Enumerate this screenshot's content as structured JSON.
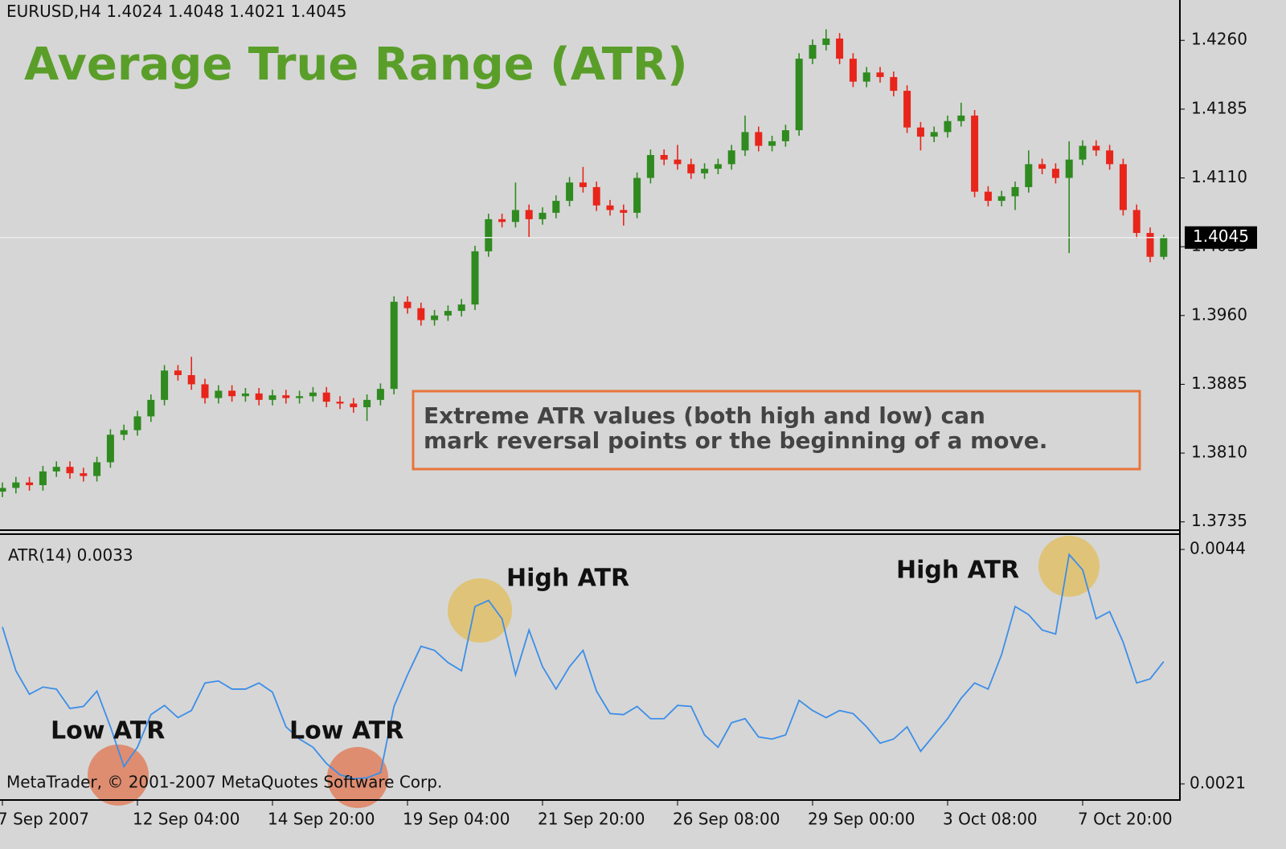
{
  "header": {
    "symbol": "EURUSD,H4"
  },
  "footer": "MetaTrader, © 2001-2007 MetaQuotes Software Corp.",
  "chart_data": [
    {
      "type": "candlestick",
      "title": "Average True Range (ATR)",
      "annotation": [
        "Extreme ATR values (both high and low) can",
        "mark reversal points or the beginning of a move."
      ],
      "up_color": "#2f8a1f",
      "down_color": "#e8251b",
      "categories": [
        "7 Sep 2007",
        null,
        null,
        null,
        null,
        null,
        null,
        null,
        null,
        null,
        "12 Sep 04:00",
        null,
        null,
        null,
        null,
        null,
        null,
        null,
        null,
        null,
        "14 Sep 20:00",
        null,
        null,
        null,
        null,
        null,
        null,
        null,
        null,
        null,
        "19 Sep 04:00",
        null,
        null,
        null,
        null,
        null,
        null,
        null,
        null,
        null,
        "21 Sep 20:00",
        null,
        null,
        null,
        null,
        null,
        null,
        null,
        null,
        null,
        "26 Sep 08:00",
        null,
        null,
        null,
        null,
        null,
        null,
        null,
        null,
        null,
        "29 Sep 00:00",
        null,
        null,
        null,
        null,
        null,
        null,
        null,
        null,
        null,
        "3 Oct 08:00",
        null,
        null,
        null,
        null,
        null,
        null,
        null,
        null,
        null,
        "7 Oct 20:00",
        null,
        null,
        null,
        null,
        null,
        null
      ],
      "open": [
        1.3768,
        1.3772,
        1.3778,
        1.3775,
        1.379,
        1.3795,
        1.3788,
        1.3785,
        1.38,
        1.383,
        1.3835,
        1.385,
        1.3868,
        1.39,
        1.3895,
        1.3885,
        1.387,
        1.3878,
        1.3872,
        1.3875,
        1.3868,
        1.3873,
        1.387,
        1.3872,
        1.3876,
        1.3866,
        1.3864,
        1.386,
        1.3868,
        1.388,
        1.3975,
        1.3968,
        1.3955,
        1.396,
        1.3965,
        1.3972,
        1.403,
        1.4065,
        1.4062,
        1.4075,
        1.4065,
        1.4072,
        1.4085,
        1.4105,
        1.41,
        1.408,
        1.4075,
        1.4072,
        1.411,
        1.4135,
        1.413,
        1.4125,
        1.4115,
        1.412,
        1.4125,
        1.414,
        1.416,
        1.4145,
        1.415,
        1.4162,
        1.424,
        1.4255,
        1.4262,
        1.424,
        1.4215,
        1.4225,
        1.422,
        1.4205,
        1.4165,
        1.4155,
        1.416,
        1.4172,
        1.4178,
        1.4095,
        1.4085,
        1.409,
        1.41,
        1.4125,
        1.412,
        1.411,
        1.413,
        1.4145,
        1.414,
        1.4125,
        1.4075,
        1.405,
        1.4024
      ],
      "high": [
        1.3778,
        1.3784,
        1.3784,
        1.3796,
        1.3801,
        1.3801,
        1.3794,
        1.3806,
        1.3836,
        1.3841,
        1.3856,
        1.3874,
        1.3906,
        1.3906,
        1.3915,
        1.3891,
        1.3884,
        1.3884,
        1.3881,
        1.3881,
        1.3879,
        1.3879,
        1.3878,
        1.3882,
        1.3882,
        1.3872,
        1.387,
        1.3874,
        1.3886,
        1.3981,
        1.3981,
        1.3974,
        1.3966,
        1.3971,
        1.3978,
        1.4036,
        1.4071,
        1.4071,
        1.4105,
        1.4081,
        1.4078,
        1.4091,
        1.4111,
        1.4122,
        1.4106,
        1.4086,
        1.4081,
        1.4116,
        1.4141,
        1.4141,
        1.4146,
        1.4131,
        1.4126,
        1.4131,
        1.4146,
        1.4178,
        1.4166,
        1.4156,
        1.4168,
        1.4246,
        1.4261,
        1.4272,
        1.4268,
        1.4246,
        1.4231,
        1.4231,
        1.4226,
        1.4211,
        1.4171,
        1.4166,
        1.4178,
        1.4192,
        1.4184,
        1.4101,
        1.4096,
        1.4106,
        1.414,
        1.4131,
        1.4126,
        1.415,
        1.4151,
        1.4151,
        1.4146,
        1.4131,
        1.4081,
        1.4056,
        1.4048
      ],
      "low": [
        1.3762,
        1.3766,
        1.3769,
        1.3769,
        1.3784,
        1.3782,
        1.3779,
        1.3779,
        1.3794,
        1.3824,
        1.3829,
        1.3844,
        1.3862,
        1.3889,
        1.3879,
        1.3864,
        1.3864,
        1.3866,
        1.3866,
        1.3862,
        1.3862,
        1.3864,
        1.3864,
        1.3866,
        1.386,
        1.3858,
        1.3854,
        1.3845,
        1.3862,
        1.3874,
        1.3962,
        1.3949,
        1.3949,
        1.3954,
        1.3959,
        1.3966,
        1.4024,
        1.4056,
        1.4056,
        1.4045,
        1.4059,
        1.4066,
        1.4079,
        1.4094,
        1.4074,
        1.4069,
        1.4058,
        1.4066,
        1.4104,
        1.4124,
        1.4119,
        1.4109,
        1.4109,
        1.4114,
        1.4119,
        1.4134,
        1.4139,
        1.4139,
        1.4144,
        1.4156,
        1.4234,
        1.4249,
        1.4234,
        1.4209,
        1.4209,
        1.4214,
        1.4199,
        1.4159,
        1.414,
        1.4149,
        1.4154,
        1.4166,
        1.4089,
        1.4079,
        1.4079,
        1.4075,
        1.4094,
        1.4114,
        1.4104,
        1.4028,
        1.4124,
        1.4134,
        1.4119,
        1.4069,
        1.4044,
        1.4018,
        1.4021
      ],
      "close": [
        1.3772,
        1.3778,
        1.3775,
        1.379,
        1.3795,
        1.3788,
        1.3785,
        1.38,
        1.383,
        1.3835,
        1.385,
        1.3868,
        1.39,
        1.3895,
        1.3885,
        1.387,
        1.3878,
        1.3872,
        1.3875,
        1.3868,
        1.3873,
        1.387,
        1.3872,
        1.3876,
        1.3866,
        1.3864,
        1.386,
        1.3868,
        1.388,
        1.3975,
        1.3968,
        1.3955,
        1.396,
        1.3965,
        1.3972,
        1.403,
        1.4065,
        1.4062,
        1.4075,
        1.4065,
        1.4072,
        1.4085,
        1.4105,
        1.41,
        1.408,
        1.4075,
        1.4072,
        1.411,
        1.4135,
        1.413,
        1.4125,
        1.4115,
        1.412,
        1.4125,
        1.414,
        1.416,
        1.4145,
        1.415,
        1.4162,
        1.424,
        1.4255,
        1.4262,
        1.424,
        1.4215,
        1.4225,
        1.422,
        1.4205,
        1.4165,
        1.4155,
        1.416,
        1.4172,
        1.4178,
        1.4095,
        1.4085,
        1.409,
        1.41,
        1.4125,
        1.412,
        1.411,
        1.413,
        1.4145,
        1.414,
        1.4125,
        1.4075,
        1.405,
        1.4024,
        1.4045
      ],
      "ylim": [
        1.3726,
        1.4304
      ],
      "yticks": [
        {
          "value": 1.426,
          "label": "1.4260"
        },
        {
          "value": 1.4185,
          "label": "1.4185"
        },
        {
          "value": 1.411,
          "label": "1.4110"
        },
        {
          "value": 1.4035,
          "label": "1.4035"
        },
        {
          "value": 1.396,
          "label": "1.3960"
        },
        {
          "value": 1.3885,
          "label": "1.3885"
        },
        {
          "value": 1.381,
          "label": "1.3810"
        },
        {
          "value": 1.3735,
          "label": "1.3735"
        }
      ]
    },
    {
      "type": "line",
      "label": "ATR(14)",
      "color": "#3c8ee8",
      "annotations": [
        "Low ATR",
        "Low ATR",
        "High ATR",
        "High ATR"
      ],
      "values": [
        0.00364,
        0.00321,
        0.00298,
        0.00305,
        0.00303,
        0.00284,
        0.00286,
        0.00301,
        0.00266,
        0.00227,
        0.00246,
        0.00278,
        0.00287,
        0.00275,
        0.00282,
        0.00309,
        0.00311,
        0.00303,
        0.00303,
        0.00309,
        0.003,
        0.00266,
        0.00254,
        0.00246,
        0.0023,
        0.00219,
        0.00215,
        0.00216,
        0.00221,
        0.00286,
        0.00317,
        0.00345,
        0.00341,
        0.00329,
        0.00321,
        0.00384,
        0.0039,
        0.00372,
        0.00317,
        0.00361,
        0.00325,
        0.00303,
        0.00325,
        0.00341,
        0.00301,
        0.00279,
        0.00278,
        0.00286,
        0.00274,
        0.00274,
        0.00287,
        0.00286,
        0.00258,
        0.00246,
        0.0027,
        0.00274,
        0.00256,
        0.00254,
        0.00258,
        0.00292,
        0.00282,
        0.00275,
        0.00282,
        0.00279,
        0.00266,
        0.0025,
        0.00254,
        0.00266,
        0.00242,
        0.00258,
        0.00274,
        0.00294,
        0.00309,
        0.00303,
        0.00337,
        0.00384,
        0.00376,
        0.00361,
        0.00357,
        0.00435,
        0.0042,
        0.00372,
        0.00379,
        0.00349,
        0.00309,
        0.00313,
        0.0033
      ],
      "ylim": [
        0.00195,
        0.00455
      ],
      "yticks": [
        0.0044,
        0.0021
      ]
    }
  ]
}
